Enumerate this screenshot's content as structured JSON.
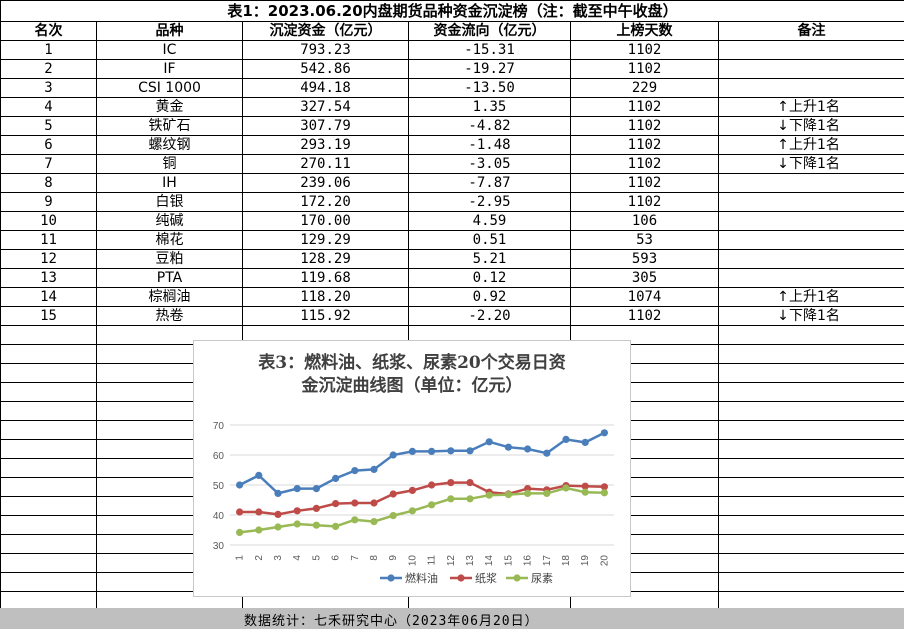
{
  "sheet": {
    "title": "表1：2023.06.20内盘期货品种资金沉淀榜（注：截至中午收盘）",
    "headers": [
      "名次",
      "品种",
      "沉淀资金（亿元）",
      "资金流向（亿元）",
      "上榜天数",
      "备注"
    ],
    "rows": [
      {
        "rank": "1",
        "name": "IC",
        "fund": "793.23",
        "flow": "-15.31",
        "days": "1102",
        "arrow": "",
        "note": ""
      },
      {
        "rank": "2",
        "name": "IF",
        "fund": "542.86",
        "flow": "-19.27",
        "days": "1102",
        "arrow": "",
        "note": ""
      },
      {
        "rank": "3",
        "name": "CSI 1000",
        "fund": "494.18",
        "flow": "-13.50",
        "days": "229",
        "arrow": "",
        "note": ""
      },
      {
        "rank": "4",
        "name": "黄金",
        "fund": "327.54",
        "flow": "1.35",
        "days": "1102",
        "arrow": "↑",
        "note": "上升1名"
      },
      {
        "rank": "5",
        "name": "铁矿石",
        "fund": "307.79",
        "flow": "-4.82",
        "days": "1102",
        "arrow": "↓",
        "note": "下降1名"
      },
      {
        "rank": "6",
        "name": "螺纹钢",
        "fund": "293.19",
        "flow": "-1.48",
        "days": "1102",
        "arrow": "↑",
        "note": "上升1名"
      },
      {
        "rank": "7",
        "name": "铜",
        "fund": "270.11",
        "flow": "-3.05",
        "days": "1102",
        "arrow": "↓",
        "note": "下降1名"
      },
      {
        "rank": "8",
        "name": "IH",
        "fund": "239.06",
        "flow": "-7.87",
        "days": "1102",
        "arrow": "",
        "note": ""
      },
      {
        "rank": "9",
        "name": "白银",
        "fund": "172.20",
        "flow": "-2.95",
        "days": "1102",
        "arrow": "",
        "note": ""
      },
      {
        "rank": "10",
        "name": "纯碱",
        "fund": "170.00",
        "flow": "4.59",
        "days": "106",
        "arrow": "",
        "note": ""
      },
      {
        "rank": "11",
        "name": "棉花",
        "fund": "129.29",
        "flow": "0.51",
        "days": "53",
        "arrow": "",
        "note": ""
      },
      {
        "rank": "12",
        "name": "豆粕",
        "fund": "128.29",
        "flow": "5.21",
        "days": "593",
        "arrow": "",
        "note": ""
      },
      {
        "rank": "13",
        "name": "PTA",
        "fund": "119.68",
        "flow": "0.12",
        "days": "305",
        "arrow": "",
        "note": ""
      },
      {
        "rank": "14",
        "name": "棕榈油",
        "fund": "118.20",
        "flow": "0.92",
        "days": "1074",
        "arrow": "↑",
        "note": "上升1名"
      },
      {
        "rank": "15",
        "name": "热卷",
        "fund": "115.92",
        "flow": "-2.20",
        "days": "1102",
        "arrow": "↓",
        "note": "下降1名"
      }
    ],
    "footer": "数据统计：七禾研究中心（2023年06月20日）"
  },
  "chart_data": {
    "type": "line",
    "title_line1": "表3：燃料油、纸浆、尿素20个交易日资",
    "title_line2": "金沉淀曲线图（单位：亿元）",
    "x": [
      "1",
      "2",
      "3",
      "4",
      "5",
      "6",
      "7",
      "8",
      "9",
      "10",
      "11",
      "12",
      "13",
      "14",
      "15",
      "16",
      "17",
      "18",
      "19",
      "20"
    ],
    "ylim": [
      30,
      70
    ],
    "yticks": [
      "30",
      "40",
      "50",
      "60",
      "70"
    ],
    "grid": true,
    "legend_position": "bottom",
    "series": [
      {
        "name": "燃料油",
        "color": "#4a7ebb",
        "values": [
          50.0,
          53.2,
          47.2,
          48.8,
          48.8,
          52.2,
          54.8,
          55.2,
          60.0,
          61.2,
          61.2,
          61.4,
          61.4,
          64.4,
          62.6,
          62.0,
          60.6,
          65.2,
          64.2,
          67.4
        ]
      },
      {
        "name": "纸浆",
        "color": "#be4b48",
        "values": [
          41.0,
          41.0,
          40.2,
          41.4,
          42.2,
          43.8,
          44.0,
          44.0,
          47.0,
          48.2,
          50.0,
          50.8,
          50.8,
          47.6,
          47.0,
          48.8,
          48.4,
          49.8,
          49.6,
          49.4
        ]
      },
      {
        "name": "尿素",
        "color": "#98b954",
        "values": [
          34.2,
          35.0,
          36.0,
          37.0,
          36.6,
          36.2,
          38.4,
          37.8,
          39.8,
          41.4,
          43.4,
          45.4,
          45.4,
          46.6,
          46.8,
          47.2,
          47.2,
          49.0,
          47.6,
          47.4
        ]
      }
    ]
  }
}
